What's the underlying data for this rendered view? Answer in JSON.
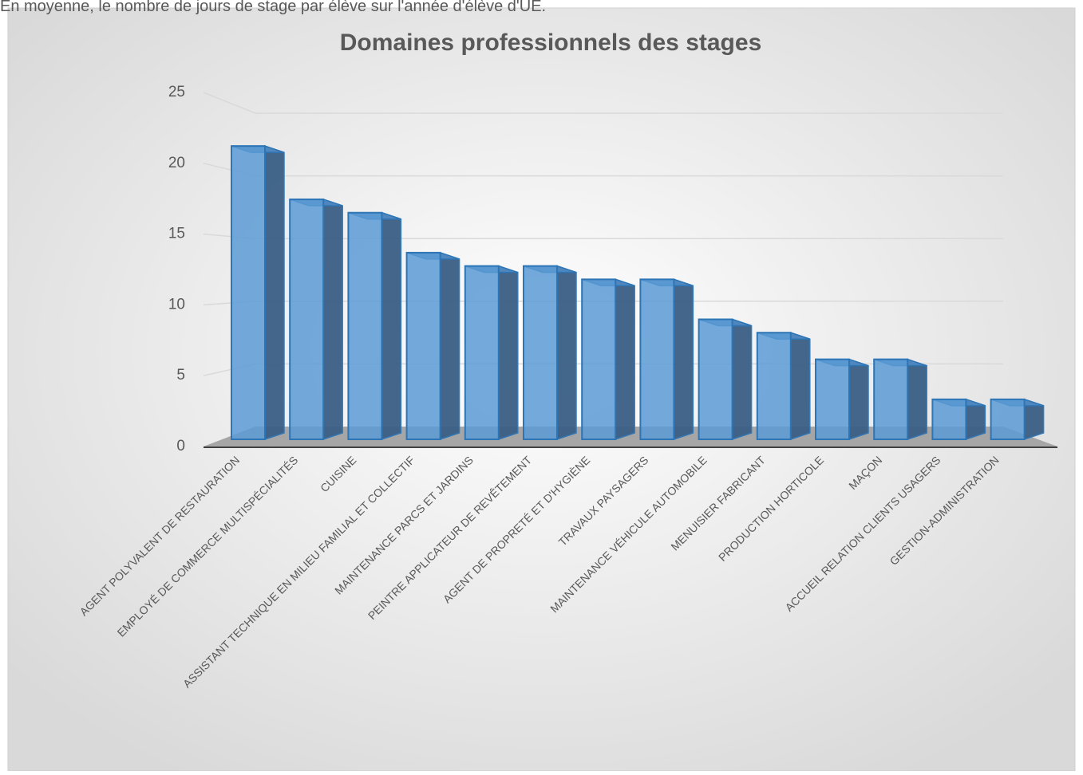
{
  "caption": "En moyenne, le nombre de jours de stage par élève sur l'année d'élève d'UE.",
  "chart_data": {
    "type": "bar3d",
    "title": "Domaines professionnels des stages",
    "categories": [
      "AGENT POLYVALENT DE RESTAURATION",
      "EMPLOYÉ DE COMMERCE MULTISPÉCIALITÉS",
      "CUISINE",
      "ASSISTANT TECHNIQUE EN MILIEU FAMILIAL ET COLLECTIF",
      "MAINTENANCE PARCS ET JARDINS",
      "PEINTRE APPLICATEUR DE REVÊTEMENT",
      "AGENT DE PROPRETÉ ET D'HYGIÈNE",
      "TRAVAUX PAYSAGERS",
      "MAINTENANCE VÉHICULE AUTOMOBILE",
      "MENUISIER FABRICANT",
      "PRODUCTION HORTICOLE",
      "MAÇON",
      "ACCUEIL RELATION CLIENTS USAGERS",
      "GESTION-ADMINISTRATION"
    ],
    "values": [
      22,
      18,
      17,
      14,
      13,
      13,
      12,
      12,
      9,
      8,
      6,
      6,
      3,
      3
    ],
    "color": "#5b9bd5",
    "ylim": [
      0,
      25
    ],
    "yticks": [
      0,
      5,
      10,
      15,
      20,
      25
    ],
    "grid": true
  }
}
